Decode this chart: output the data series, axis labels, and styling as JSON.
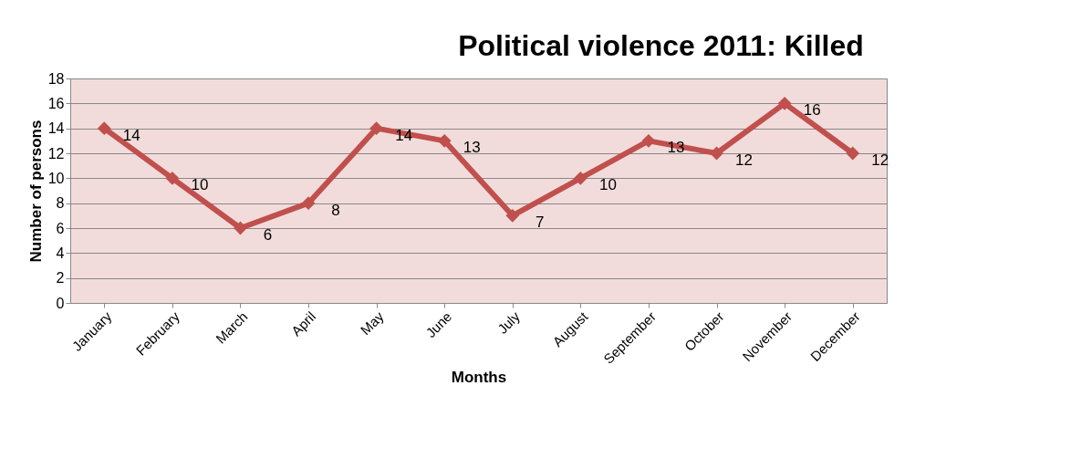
{
  "chart_data": {
    "type": "line",
    "title": "Political violence 2011: Killed",
    "xlabel": "Months",
    "ylabel": "Number of persons",
    "categories": [
      "January",
      "February",
      "March",
      "April",
      "May",
      "June",
      "July",
      "August",
      "September",
      "October",
      "November",
      "December"
    ],
    "series": [
      {
        "color": "#c0504d",
        "values": [
          14,
          10,
          6,
          8,
          14,
          13,
          7,
          10,
          13,
          12,
          16,
          12
        ]
      }
    ],
    "ylim": [
      0,
      18
    ],
    "yticks": [
      0,
      2,
      4,
      6,
      8,
      10,
      12,
      14,
      16,
      18
    ],
    "grid": "y",
    "marker": "diamond",
    "line_style": "solid",
    "data_labels": true
  }
}
